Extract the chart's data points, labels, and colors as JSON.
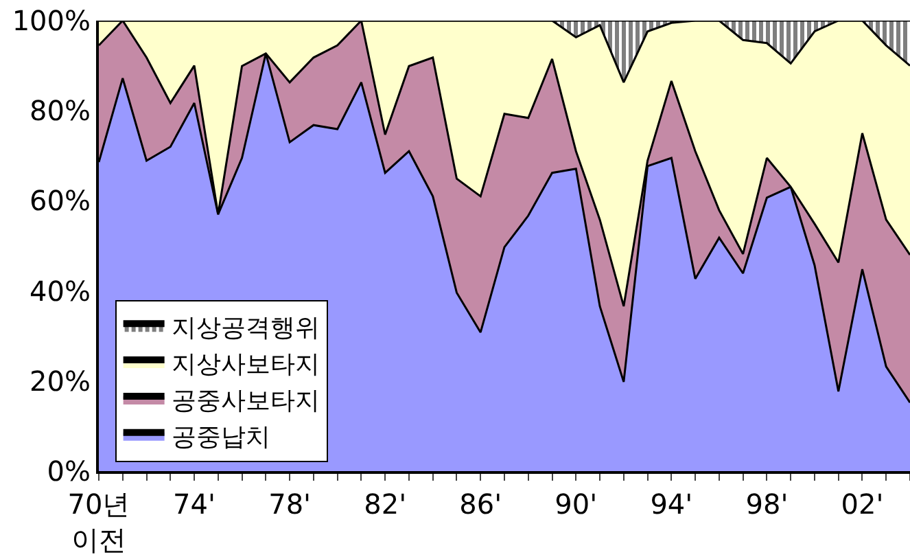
{
  "chart_data": {
    "type": "area",
    "stacked": true,
    "categories": [
      "70년\n이전",
      null,
      null,
      null,
      "74'",
      null,
      null,
      null,
      "78'",
      null,
      null,
      null,
      "82'",
      null,
      null,
      null,
      "86'",
      null,
      null,
      null,
      "90'",
      null,
      null,
      null,
      "94'",
      null,
      null,
      null,
      "98'",
      null,
      null,
      null,
      "02'",
      null,
      null
    ],
    "series": [
      {
        "name": "공중납치",
        "color": "#9999ff",
        "values": [
          68.6,
          87.2,
          68.9,
          72,
          81.7,
          57,
          69.5,
          92.7,
          73,
          76.8,
          75.9,
          86.3,
          66.2,
          71,
          61,
          39.6,
          30.8,
          49.7,
          56.7,
          66.2,
          67.1,
          36.6,
          19.8,
          67.7,
          69.5,
          42.7,
          51.8,
          43.9,
          60.7,
          63.1,
          45.7,
          17.7,
          44.8,
          23.2,
          15.2
        ]
      },
      {
        "name": "공중사보타지",
        "color": "#c48aa6",
        "values": [
          25.9,
          12.8,
          22.9,
          9.7,
          8.3,
          0,
          20.4,
          0,
          13.3,
          15,
          18.6,
          13.7,
          8.5,
          18.9,
          30.8,
          25.3,
          30.2,
          29.6,
          21.7,
          25.3,
          3.9,
          19.2,
          16.8,
          1.2,
          17.1,
          28.3,
          6.1,
          4.3,
          8.8,
          0,
          9.2,
          28.6,
          30.2,
          32.6,
          32.8
        ]
      },
      {
        "name": "지상사보타지",
        "color": "#ffffcc",
        "values": [
          5.5,
          0,
          8.2,
          18.3,
          10,
          43,
          10.1,
          7.3,
          13.7,
          8.2,
          5.5,
          0,
          25.3,
          10.1,
          8.2,
          35.1,
          39,
          20.7,
          21.6,
          8.5,
          25.3,
          43.2,
          49.7,
          28.7,
          12.9,
          29,
          42.1,
          47.5,
          25.5,
          27.4,
          42.7,
          53.7,
          25,
          38.7,
          42
        ]
      },
      {
        "name": "지상공격행위",
        "color": "#000000",
        "values": [
          0,
          0,
          0,
          0,
          0,
          0,
          0,
          0,
          0,
          0,
          0,
          0,
          0,
          0,
          0,
          0,
          0,
          0,
          0,
          0,
          3.7,
          1,
          13.7,
          2.4,
          0.5,
          0,
          0,
          4.3,
          5,
          9.5,
          2.4,
          0,
          0,
          5.5,
          10
        ]
      }
    ],
    "ylim": [
      0,
      100
    ],
    "yticks": [
      {
        "value": 0,
        "label": "0%"
      },
      {
        "value": 20,
        "label": "20%"
      },
      {
        "value": 40,
        "label": "40%"
      },
      {
        "value": 60,
        "label": "60%"
      },
      {
        "value": 80,
        "label": "80%"
      },
      {
        "value": 100,
        "label": "100%"
      }
    ],
    "legend": "bottom left",
    "marker": "none",
    "line_style": "solid"
  }
}
